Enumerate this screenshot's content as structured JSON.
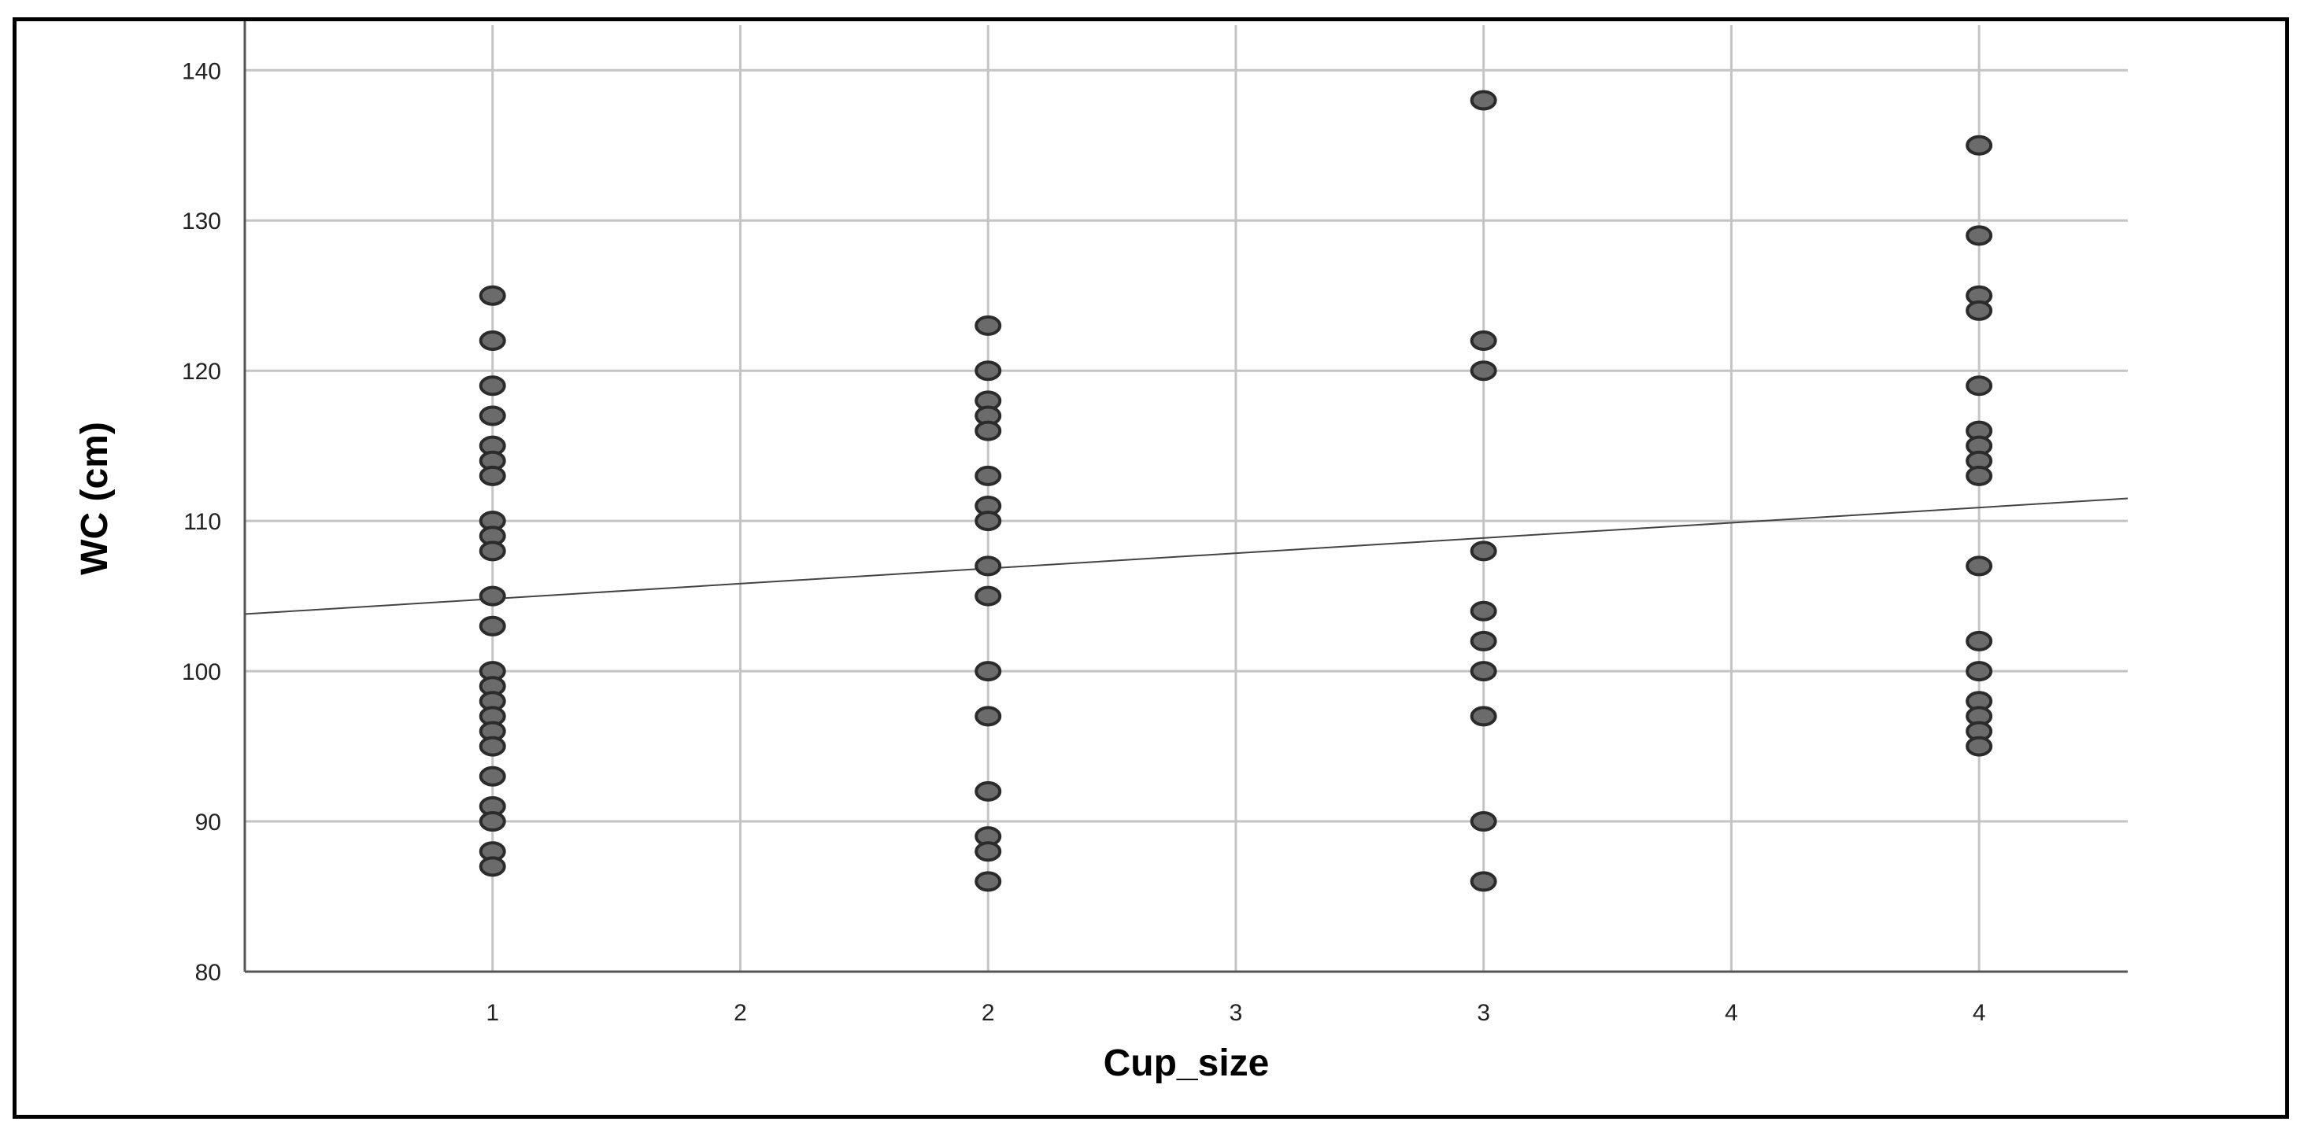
{
  "chart_data": {
    "type": "scatter",
    "title": "",
    "xlabel": "Cup_size",
    "ylabel": "WC (cm)",
    "xlim": [
      0.5,
      4.3
    ],
    "ylim": [
      80,
      143
    ],
    "x_tick_values": [
      1,
      1.5,
      2,
      2.5,
      3,
      3.5,
      4
    ],
    "x_tick_labels": [
      "1",
      "2",
      "2",
      "3",
      "3",
      "4",
      "4"
    ],
    "y_ticks": [
      80,
      90,
      100,
      110,
      120,
      130,
      140
    ],
    "grid": true,
    "marker_color": "#6b6b6b",
    "marker_edge_color": "#2b2b2b",
    "series": [
      {
        "points": [
          {
            "x": 1,
            "y": 125
          },
          {
            "x": 1,
            "y": 122
          },
          {
            "x": 1,
            "y": 119
          },
          {
            "x": 1,
            "y": 117
          },
          {
            "x": 1,
            "y": 115
          },
          {
            "x": 1,
            "y": 114
          },
          {
            "x": 1,
            "y": 113
          },
          {
            "x": 1,
            "y": 110
          },
          {
            "x": 1,
            "y": 109
          },
          {
            "x": 1,
            "y": 108
          },
          {
            "x": 1,
            "y": 105
          },
          {
            "x": 1,
            "y": 103
          },
          {
            "x": 1,
            "y": 100
          },
          {
            "x": 1,
            "y": 99
          },
          {
            "x": 1,
            "y": 98
          },
          {
            "x": 1,
            "y": 97
          },
          {
            "x": 1,
            "y": 96
          },
          {
            "x": 1,
            "y": 95
          },
          {
            "x": 1,
            "y": 93
          },
          {
            "x": 1,
            "y": 91
          },
          {
            "x": 1,
            "y": 90
          },
          {
            "x": 1,
            "y": 88
          },
          {
            "x": 1,
            "y": 87
          },
          {
            "x": 2,
            "y": 123
          },
          {
            "x": 2,
            "y": 120
          },
          {
            "x": 2,
            "y": 118
          },
          {
            "x": 2,
            "y": 117
          },
          {
            "x": 2,
            "y": 116
          },
          {
            "x": 2,
            "y": 113
          },
          {
            "x": 2,
            "y": 111
          },
          {
            "x": 2,
            "y": 110
          },
          {
            "x": 2,
            "y": 107
          },
          {
            "x": 2,
            "y": 105
          },
          {
            "x": 2,
            "y": 100
          },
          {
            "x": 2,
            "y": 97
          },
          {
            "x": 2,
            "y": 92
          },
          {
            "x": 2,
            "y": 89
          },
          {
            "x": 2,
            "y": 88
          },
          {
            "x": 2,
            "y": 86
          },
          {
            "x": 3,
            "y": 138
          },
          {
            "x": 3,
            "y": 122
          },
          {
            "x": 3,
            "y": 120
          },
          {
            "x": 3,
            "y": 108
          },
          {
            "x": 3,
            "y": 104
          },
          {
            "x": 3,
            "y": 102
          },
          {
            "x": 3,
            "y": 100
          },
          {
            "x": 3,
            "y": 97
          },
          {
            "x": 3,
            "y": 90
          },
          {
            "x": 3,
            "y": 86
          },
          {
            "x": 4,
            "y": 135
          },
          {
            "x": 4,
            "y": 129
          },
          {
            "x": 4,
            "y": 125
          },
          {
            "x": 4,
            "y": 124
          },
          {
            "x": 4,
            "y": 119
          },
          {
            "x": 4,
            "y": 116
          },
          {
            "x": 4,
            "y": 115
          },
          {
            "x": 4,
            "y": 114
          },
          {
            "x": 4,
            "y": 113
          },
          {
            "x": 4,
            "y": 107
          },
          {
            "x": 4,
            "y": 102
          },
          {
            "x": 4,
            "y": 100
          },
          {
            "x": 4,
            "y": 98
          },
          {
            "x": 4,
            "y": 97
          },
          {
            "x": 4,
            "y": 96
          },
          {
            "x": 4,
            "y": 95
          }
        ]
      }
    ],
    "fit_line": {
      "start": {
        "x": 0.5,
        "y": 103.8
      },
      "end": {
        "x": 4.3,
        "y": 111.5
      },
      "color": "#444444"
    }
  }
}
